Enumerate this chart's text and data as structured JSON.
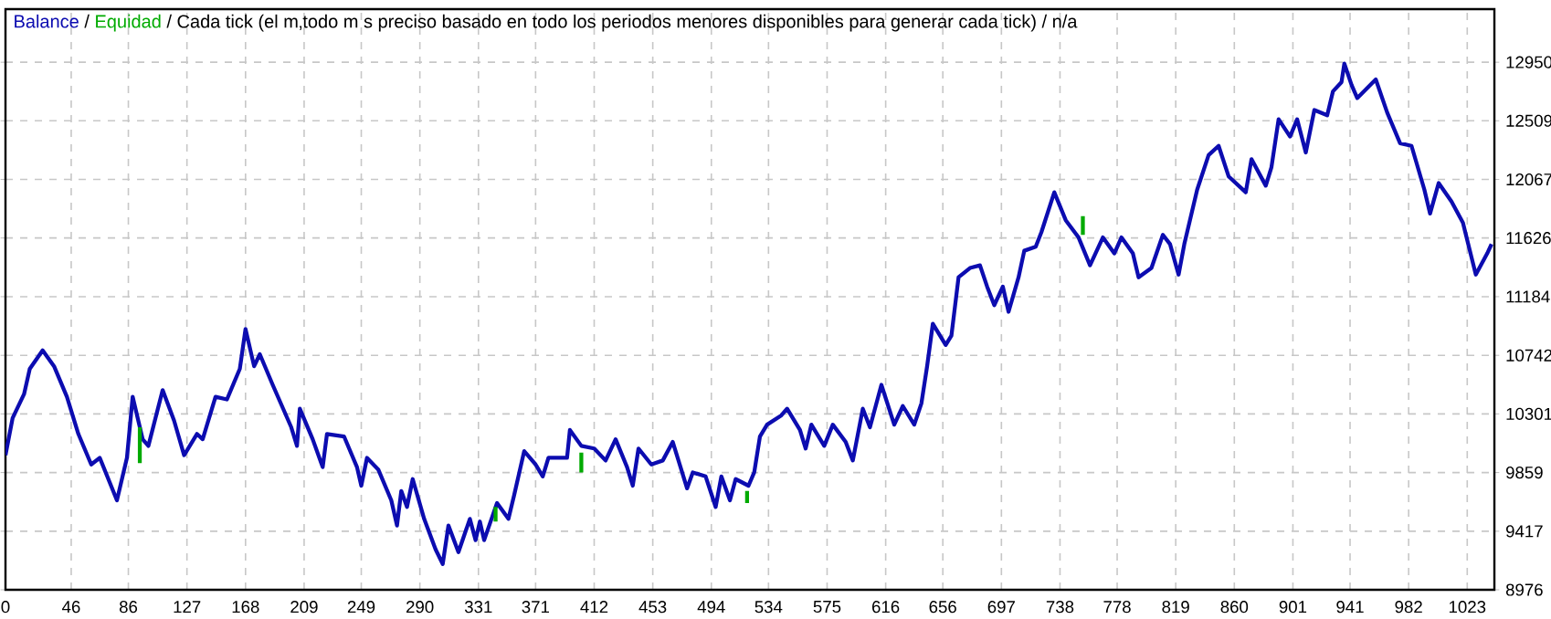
{
  "chart_data": {
    "type": "line",
    "subtitle": "/ Cada tick (el m‚todo m s preciso basado en todo los periodos menores disponibles para generar cada tick)  / n/a",
    "annotations": [
      "/"
    ],
    "xlim": [
      0,
      1042
    ],
    "ylim": [
      8976,
      13350
    ],
    "xticks": [
      0,
      46,
      86,
      127,
      168,
      209,
      249,
      290,
      331,
      371,
      412,
      453,
      494,
      534,
      575,
      616,
      656,
      697,
      738,
      778,
      819,
      860,
      901,
      941,
      982,
      1023
    ],
    "yticks": [
      8976,
      9417,
      9859,
      10301,
      10742,
      11184,
      11626,
      12067,
      12509,
      12950
    ],
    "grid": true,
    "legend": "top left",
    "marker": "none",
    "line_style": "solid",
    "series": [
      {
        "name": "Balance",
        "color": "#0c0cb0",
        "x": [
          0,
          5,
          13,
          17,
          26,
          34,
          43,
          51,
          60,
          66,
          78,
          85,
          89,
          96,
          100,
          110,
          118,
          125,
          134,
          138,
          147,
          155,
          164,
          168,
          174,
          178,
          187,
          200,
          204,
          206,
          215,
          222,
          225,
          237,
          246,
          249,
          253,
          261,
          270,
          274,
          277,
          281,
          285,
          293,
          301,
          306,
          310,
          317,
          325,
          329,
          332,
          335,
          344,
          352,
          356,
          363,
          371,
          376,
          380,
          393,
          395,
          403,
          412,
          420,
          427,
          435,
          439,
          443,
          452,
          460,
          467,
          477,
          481,
          490,
          497,
          501,
          507,
          511,
          520,
          524,
          528,
          533,
          543,
          547,
          556,
          560,
          564,
          573,
          579,
          588,
          593,
          600,
          605,
          613,
          622,
          628,
          636,
          641,
          645,
          649,
          658,
          662,
          667,
          675,
          682,
          687,
          692,
          698,
          702,
          709,
          713,
          721,
          725,
          734,
          742,
          751,
          759,
          768,
          776,
          781,
          789,
          793,
          802,
          810,
          815,
          821,
          825,
          834,
          842,
          849,
          856,
          868,
          872,
          882,
          886,
          891,
          899,
          904,
          910,
          916,
          925,
          929,
          935,
          937,
          942,
          946,
          959,
          967,
          976,
          984,
          993,
          997,
          1003,
          1012,
          1020,
          1029,
          1037,
          1040
        ],
        "values": [
          9990,
          10270,
          10450,
          10640,
          10780,
          10660,
          10430,
          10150,
          9920,
          9970,
          9650,
          9970,
          10430,
          10110,
          10060,
          10480,
          10250,
          9990,
          10150,
          10110,
          10430,
          10410,
          10640,
          10940,
          10660,
          10750,
          10520,
          10200,
          10060,
          10340,
          10110,
          9900,
          10150,
          10130,
          9900,
          9760,
          9970,
          9880,
          9650,
          9460,
          9720,
          9600,
          9810,
          9510,
          9280,
          9170,
          9460,
          9260,
          9510,
          9350,
          9490,
          9350,
          9630,
          9510,
          9690,
          10020,
          9920,
          9830,
          9970,
          9970,
          10180,
          10060,
          10040,
          9950,
          10110,
          9900,
          9760,
          10040,
          9920,
          9950,
          10090,
          9740,
          9860,
          9830,
          9600,
          9830,
          9650,
          9810,
          9760,
          9860,
          10130,
          10220,
          10290,
          10340,
          10180,
          10040,
          10220,
          10060,
          10220,
          10090,
          9950,
          10340,
          10200,
          10520,
          10220,
          10360,
          10220,
          10380,
          10660,
          10980,
          10820,
          10890,
          11330,
          11400,
          11420,
          11260,
          11120,
          11260,
          11070,
          11330,
          11530,
          11560,
          11670,
          11970,
          11760,
          11630,
          11420,
          11630,
          11510,
          11630,
          11510,
          11330,
          11400,
          11650,
          11580,
          11350,
          11580,
          11990,
          12250,
          12320,
          12090,
          11970,
          12220,
          12020,
          12160,
          12520,
          12390,
          12520,
          12270,
          12590,
          12550,
          12730,
          12800,
          12940,
          12780,
          12680,
          12820,
          12570,
          12340,
          12320,
          11990,
          11810,
          12040,
          11900,
          11740,
          11350,
          11510,
          11580
        ]
      },
      {
        "name": "Equidad",
        "color": "#00aa00",
        "x": [
          94,
          94,
          96,
          343,
          343,
          345,
          403,
          403,
          405,
          519,
          519,
          521,
          754,
          754
        ],
        "values": [
          10200,
          9930,
          null,
          9600,
          9490,
          null,
          10010,
          9860,
          null,
          9720,
          9630,
          null,
          11650,
          11790
        ]
      }
    ]
  }
}
